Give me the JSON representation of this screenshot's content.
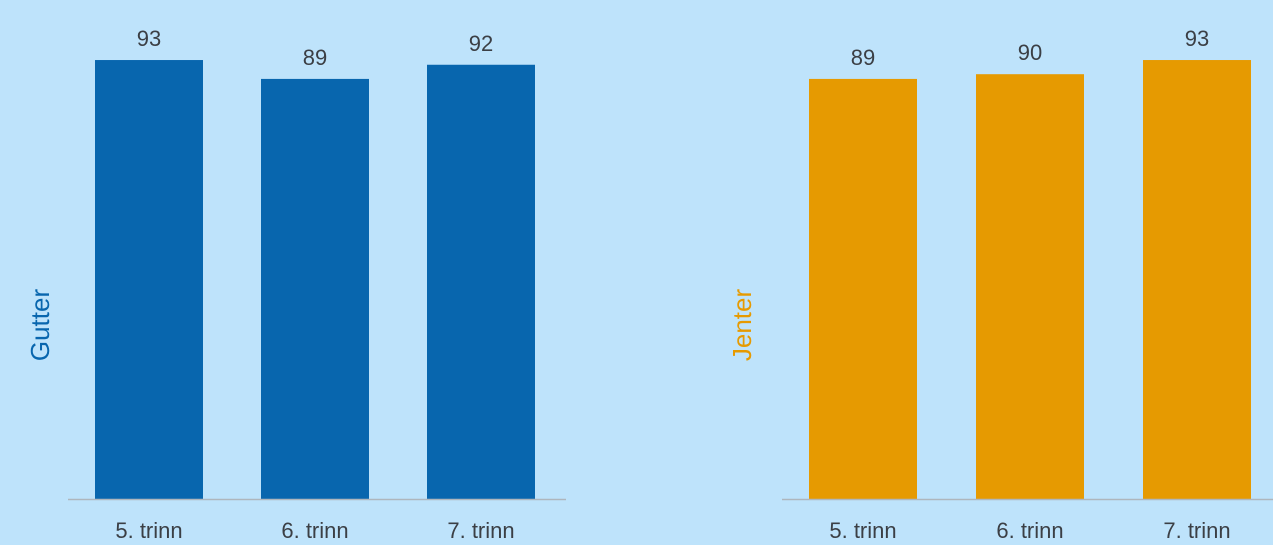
{
  "colors": {
    "background": "#bee3fb",
    "boys": "#0866ae",
    "girls": "#e69a01",
    "baseline": "#aeb6bd",
    "text": "#3b3f45"
  },
  "chart_data": [
    {
      "type": "bar",
      "ylabel": "Gutter",
      "categories": [
        "5. trinn",
        "6. trinn",
        "7. trinn"
      ],
      "values": [
        93,
        89,
        92
      ],
      "data_labels": [
        "93",
        "89",
        "92"
      ],
      "color": "#0866ae",
      "ylim": [
        0,
        100
      ],
      "grid": false
    },
    {
      "type": "bar",
      "ylabel": "Jenter",
      "categories": [
        "5. trinn",
        "6. trinn",
        "7. trinn"
      ],
      "values": [
        89,
        90,
        93
      ],
      "data_labels": [
        "89",
        "90",
        "93"
      ],
      "color": "#e69a01",
      "ylim": [
        0,
        100
      ],
      "grid": false
    }
  ]
}
